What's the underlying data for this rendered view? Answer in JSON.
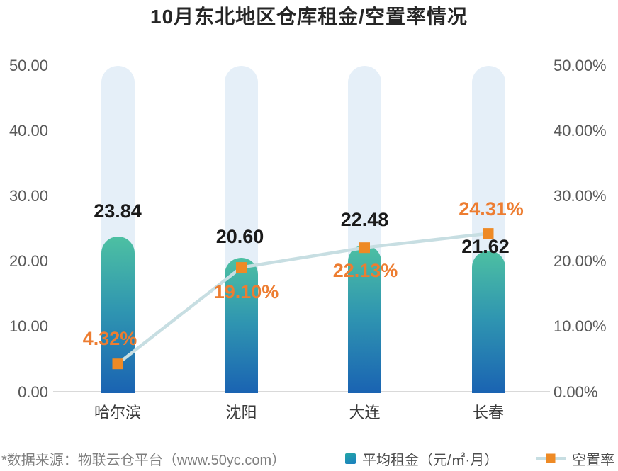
{
  "title": "10月东北地区仓库租金/空置率情况",
  "footer": {
    "source_note": "*数据来源：物联云仓平台（www.50yc.com）"
  },
  "legend": [
    {
      "label": "平均租金（元/㎡·月）",
      "marker": "teal-square"
    },
    {
      "label": "空置率",
      "marker": "line-with-orange-square"
    }
  ],
  "colors": {
    "bar_gradient_top": "#4dc0a2",
    "bar_gradient_mid": "#2f95b1",
    "bar_gradient_bottom": "#1a63b2",
    "bar_track": "#e5eff8",
    "line": "#c7dee2",
    "marker_orange": "#ee8a25",
    "vacancy_label_orange": "#ed7d31",
    "rent_label": "#1a1a1a",
    "axis_text": "#595959",
    "axis_line": "#d9d9d9"
  },
  "chart_data": {
    "type": "combo",
    "title": "10月东北地区仓库租金/空置率情况",
    "categories": [
      "哈尔滨",
      "沈阳",
      "大连",
      "长春"
    ],
    "series": [
      {
        "name": "平均租金（元/㎡·月）",
        "type": "bar",
        "values": [
          23.84,
          20.6,
          22.48,
          21.62
        ],
        "labels": [
          "23.84",
          "20.60",
          "22.48",
          "21.62"
        ]
      },
      {
        "name": "空置率",
        "type": "line",
        "values": [
          4.32,
          19.1,
          22.13,
          24.31
        ],
        "labels": [
          "4.32%",
          "19.10%",
          "22.13%",
          "24.31%"
        ]
      }
    ],
    "left_axis": {
      "min": 0,
      "max": 50,
      "ticks": [
        "50.00",
        "40.00",
        "30.00",
        "20.00",
        "10.00",
        "0.00"
      ]
    },
    "right_axis": {
      "min": 0,
      "max": 50,
      "ticks": [
        "50.00%",
        "40.00%",
        "30.00%",
        "20.00%",
        "10.00%",
        "0.00%"
      ]
    },
    "grid": false,
    "legend_position": "bottom"
  }
}
